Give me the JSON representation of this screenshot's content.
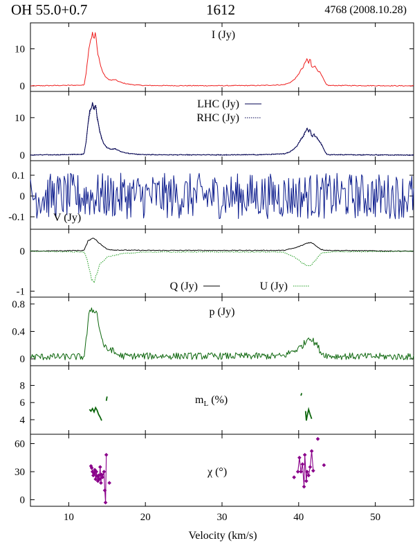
{
  "header": {
    "source": "OH 55.0+0.7",
    "frequency": "1612",
    "observation": "4768 (2008.10.28)"
  },
  "chart_data": {
    "type": "line",
    "title": "OH 55.0+0.7 1612",
    "xlabel": "Velocity (km/s)",
    "xlim": [
      5,
      55
    ],
    "xticks": [
      10,
      20,
      30,
      40,
      50
    ],
    "colors": {
      "I": "#ee1c1c",
      "LHC": "#000050",
      "RHC": "#000050",
      "V": "#0a1a8c",
      "Q": "#000000",
      "U": "#1a9a1a",
      "p": "#0b650b",
      "mL": "#0b650b",
      "chi": "#8a008a"
    },
    "panels": [
      {
        "id": "I",
        "label": "I (Jy)",
        "ylim": [
          -1.5,
          17
        ],
        "yticks": [
          0,
          10
        ],
        "series": [
          {
            "name": "I (Jy)",
            "style": "solid",
            "color_key": "I",
            "x": [
              5,
              12.0,
              12.3,
              12.6,
              12.9,
              13.1,
              13.3,
              13.5,
              13.7,
              13.9,
              14.2,
              14.6,
              15.0,
              15.5,
              16.0,
              16.5,
              17.0,
              17.5,
              18.0,
              19.0,
              20.0,
              25.0,
              30.0,
              35.0,
              38.0,
              38.8,
              39.3,
              39.8,
              40.2,
              40.6,
              40.9,
              41.1,
              41.3,
              41.5,
              41.7,
              42.0,
              42.4,
              42.8,
              43.2,
              43.6,
              44.0,
              46.0,
              50.0,
              55
            ],
            "y": [
              0,
              0.2,
              4,
              10,
              13,
              14,
              12.5,
              14.2,
              10,
              8,
              5,
              3,
              2,
              1.5,
              1.7,
              1.2,
              0.8,
              0.6,
              0.4,
              0.2,
              0.1,
              0.05,
              0.05,
              0.1,
              0.3,
              0.8,
              1.5,
              2.5,
              4,
              5,
              6.5,
              7.3,
              6,
              7.5,
              5,
              5.5,
              4.5,
              3.5,
              2,
              0.3,
              0.1,
              0.1,
              0.05,
              0
            ]
          }
        ]
      },
      {
        "id": "LR",
        "label": "",
        "ylim": [
          -1.5,
          17
        ],
        "yticks": [
          0,
          10
        ],
        "legend": [
          {
            "label": "LHC (Jy)",
            "style": "solid"
          },
          {
            "label": "RHC (Jy)",
            "style": "dotted"
          }
        ],
        "series": [
          {
            "name": "LHC (Jy)",
            "style": "solid",
            "color_key": "LHC",
            "x": [
              5,
              12.0,
              12.3,
              12.6,
              12.9,
              13.1,
              13.3,
              13.5,
              13.7,
              13.9,
              14.2,
              14.6,
              15.0,
              15.5,
              16.0,
              16.5,
              17.0,
              17.5,
              18.0,
              19.0,
              20.0,
              25.0,
              30.0,
              35.0,
              38.0,
              38.8,
              39.3,
              39.8,
              40.2,
              40.6,
              40.9,
              41.1,
              41.3,
              41.5,
              41.7,
              42.0,
              42.4,
              42.8,
              43.2,
              43.6,
              44.0,
              46.0,
              50.0,
              55
            ],
            "y": [
              0,
              0.2,
              4,
              10,
              13,
              14.3,
              12.5,
              13.8,
              10,
              8,
              5,
              3,
              2,
              1.5,
              1.7,
              1.2,
              0.8,
              0.6,
              0.4,
              0.2,
              0.1,
              0.05,
              0.05,
              0.1,
              0.3,
              0.8,
              1.5,
              2.5,
              4,
              5,
              6.5,
              7.3,
              6,
              7.3,
              5,
              5.5,
              4.5,
              3.5,
              2,
              0.3,
              0.1,
              0.1,
              0.05,
              0
            ]
          },
          {
            "name": "RHC (Jy)",
            "style": "dotted",
            "color_key": "RHC",
            "x": [
              5,
              12.0,
              12.3,
              12.6,
              12.9,
              13.1,
              13.3,
              13.5,
              13.7,
              13.9,
              14.2,
              14.6,
              15.0,
              15.5,
              16.0,
              16.5,
              17.0,
              17.5,
              18.0,
              19.0,
              20.0,
              25.0,
              30.0,
              35.0,
              38.0,
              38.8,
              39.3,
              39.8,
              40.2,
              40.6,
              40.9,
              41.1,
              41.3,
              41.5,
              41.7,
              42.0,
              42.4,
              42.8,
              43.2,
              43.6,
              44.0,
              46.0,
              50.0,
              55
            ],
            "y": [
              0,
              0.2,
              4,
              10,
              12.8,
              13.6,
              12.3,
              14.0,
              9.8,
              8,
              5,
              3,
              2,
              1.5,
              1.7,
              1.2,
              0.8,
              0.6,
              0.4,
              0.2,
              0.1,
              0.05,
              0.05,
              0.1,
              0.3,
              0.8,
              1.5,
              2.5,
              4,
              5,
              6.3,
              7.1,
              6,
              7.2,
              5,
              5.4,
              4.5,
              3.5,
              2,
              0.3,
              0.1,
              0.1,
              0.05,
              0
            ]
          }
        ]
      },
      {
        "id": "V",
        "label": "V (Jy)",
        "ylim": [
          -0.16,
          0.17
        ],
        "yticks": [
          0.1,
          0,
          -0.1
        ],
        "ytick_labels": [
          "0.1",
          "0",
          "-0.1"
        ],
        "series": [
          {
            "name": "V (Jy)",
            "style": "solid",
            "color_key": "V",
            "noise": 0.11,
            "x": [
              5,
              55
            ],
            "y": [
              0,
              0
            ]
          }
        ]
      },
      {
        "id": "QU",
        "label": "",
        "ylim": [
          -1.15,
          0.55
        ],
        "yticks": [
          0,
          -1
        ],
        "legend": [
          {
            "label": "Q (Jy)",
            "style": "solid"
          },
          {
            "label": "U (Jy)",
            "style": "dotted"
          }
        ],
        "series": [
          {
            "name": "Q (Jy)",
            "style": "solid",
            "color_key": "Q",
            "x": [
              5,
              12.0,
              12.5,
              13.0,
              13.5,
              14.0,
              14.5,
              15.0,
              16.0,
              20.0,
              38.0,
              39.5,
              40.5,
              41.0,
              41.5,
              42.0,
              42.5,
              43.0,
              44.0,
              55
            ],
            "y": [
              0,
              0.02,
              0.25,
              0.33,
              0.3,
              0.2,
              0.12,
              0.05,
              0.03,
              0.02,
              0.02,
              0.08,
              0.15,
              0.2,
              0.22,
              0.18,
              0.1,
              0.04,
              0.02,
              0
            ]
          },
          {
            "name": "U (Jy)",
            "style": "dotted",
            "color_key": "U",
            "x": [
              5,
              12.0,
              12.4,
              12.8,
              13.0,
              13.3,
              13.6,
              14.0,
              14.5,
              15.0,
              16.0,
              17.0,
              20.0,
              38.0,
              39.5,
              40.5,
              41.0,
              41.3,
              41.8,
              42.5,
              43.0,
              44.0,
              55
            ],
            "y": [
              0,
              -0.02,
              -0.2,
              -0.55,
              -0.72,
              -0.8,
              -0.6,
              -0.35,
              -0.25,
              -0.15,
              -0.1,
              -0.06,
              -0.02,
              -0.02,
              -0.15,
              -0.3,
              -0.35,
              -0.38,
              -0.32,
              -0.15,
              -0.05,
              -0.02,
              0
            ]
          }
        ]
      },
      {
        "id": "p",
        "label": "p (Jy)",
        "ylim": [
          -0.1,
          0.9
        ],
        "yticks": [
          0.8,
          0.4,
          0
        ],
        "series": [
          {
            "name": "p (Jy)",
            "style": "solid",
            "color_key": "p",
            "noise": 0.05,
            "x": [
              5,
              12.0,
              12.3,
              12.6,
              12.9,
              13.1,
              13.4,
              13.7,
              14.0,
              14.3,
              14.6,
              15.0,
              15.5,
              16.0,
              16.5,
              17.0,
              38.0,
              39.0,
              40.0,
              40.5,
              41.0,
              41.3,
              41.6,
              42.0,
              42.5,
              43.0,
              44.0,
              55
            ],
            "y": [
              0.03,
              0.03,
              0.3,
              0.6,
              0.75,
              0.7,
              0.72,
              0.65,
              0.45,
              0.3,
              0.2,
              0.12,
              0.15,
              0.08,
              0.06,
              0.04,
              0.04,
              0.1,
              0.15,
              0.2,
              0.25,
              0.35,
              0.28,
              0.25,
              0.18,
              0.08,
              0.04,
              0.03
            ]
          }
        ]
      },
      {
        "id": "mL",
        "label": "mL (%)",
        "label_main": "m",
        "label_sub": "L",
        "label_rest": " (%)",
        "ylim": [
          2.3,
          10.3
        ],
        "yticks": [
          8,
          6,
          4
        ],
        "segments": [
          {
            "x": [
              12.7,
              12.9,
              13.1,
              13.3,
              13.5,
              13.7,
              13.9,
              14.1,
              14.3
            ],
            "y": [
              5.2,
              5.0,
              5.3,
              4.9,
              5.4,
              5.1,
              4.6,
              4.3,
              3.9
            ]
          },
          {
            "x": [
              14.9,
              15.0
            ],
            "y": [
              6.2,
              6.7
            ]
          },
          {
            "x": [
              40.3,
              40.4
            ],
            "y": [
              6.8,
              7.1
            ]
          },
          {
            "x": [
              40.9,
              41.0,
              41.1,
              41.2,
              41.3,
              41.5,
              41.7
            ],
            "y": [
              5.0,
              3.9,
              4.4,
              4.8,
              5.2,
              4.6,
              4.1
            ]
          }
        ]
      },
      {
        "id": "chi",
        "label": "χ (°)",
        "ylim": [
          -7,
          70
        ],
        "yticks": [
          60,
          30,
          0
        ],
        "segments": [
          {
            "x": [
              12.9,
              13.0,
              13.1,
              13.2,
              13.3,
              13.4,
              13.5,
              13.6,
              13.7,
              13.8,
              13.9,
              14.0,
              14.1,
              14.2,
              14.3,
              14.4,
              14.6,
              14.7,
              14.8,
              14.9
            ],
            "y": [
              36,
              34,
              30,
              26,
              28,
              32,
              22,
              30,
              25,
              20,
              26,
              22,
              35,
              18,
              27,
              24,
              30,
              10,
              -3,
              48
            ]
          },
          {
            "x": [
              39.9,
              40.1,
              40.3,
              40.5,
              40.7,
              40.8,
              41.0,
              41.1,
              41.3,
              41.5,
              41.7,
              41.9
            ],
            "y": [
              30,
              45,
              30,
              38,
              14,
              48,
              20,
              30,
              26,
              35,
              52,
              31
            ]
          }
        ],
        "points": [
          {
            "x": 39.4,
            "y": 24
          },
          {
            "x": 42.5,
            "y": 65
          },
          {
            "x": 43.3,
            "y": 37
          },
          {
            "x": 15.3,
            "y": 18
          }
        ]
      }
    ]
  }
}
